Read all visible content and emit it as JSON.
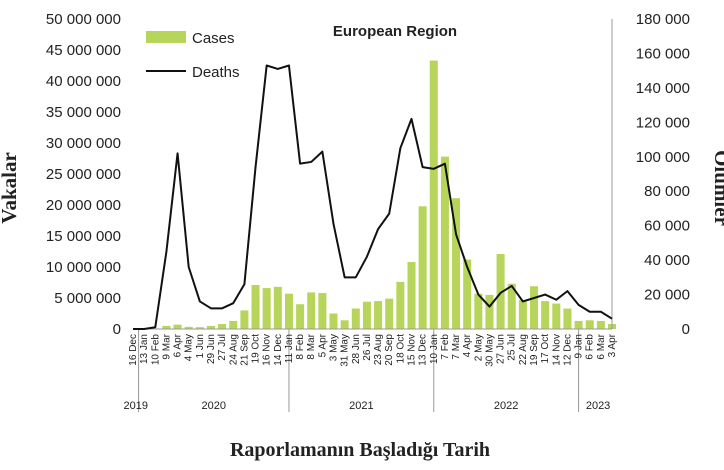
{
  "chart_data": {
    "type": "bar+line",
    "title": "European Region",
    "ylabel_left": "Vakalar",
    "ylabel_right": "Ölümler",
    "xlabel": "Raporlamanın Başladığı Tarih",
    "ylim_left": [
      0,
      50000000
    ],
    "ylim_right": [
      0,
      180000
    ],
    "yticks_left": [
      "0",
      "5 000 000",
      "10 000 000",
      "15 000 000",
      "20 000 000",
      "25 000 000",
      "30 000 000",
      "35 000 000",
      "40 000 000",
      "45 000 000",
      "50 000 000"
    ],
    "yticks_right": [
      "0",
      "20 000",
      "40 000",
      "60 000",
      "80 000",
      "100 000",
      "120 000",
      "140 000",
      "160 000",
      "180 000"
    ],
    "legend": {
      "position": "top-left",
      "bar_label": "Cases",
      "line_label": "Deaths"
    },
    "colors": {
      "bar": "#b7d55a",
      "line": "#111111"
    },
    "x_tick_labels": [
      "16 Dec",
      "13 Jan",
      "10 Feb",
      "9 Mar",
      "6 Apr",
      "4 May",
      "1 Jun",
      "29 Jun",
      "27 Jul",
      "24 Aug",
      "21 Sep",
      "19 Oct",
      "16 Nov",
      "14 Dec",
      "11 Jan",
      "8 Feb",
      "8 Mar",
      "5 Apr",
      "3 May",
      "31 May",
      "28 Jun",
      "26 Jul",
      "23 Aug",
      "20 Sep",
      "18 Oct",
      "15 Nov",
      "13 Dec",
      "10 Jan",
      "7 Feb",
      "7 Mar",
      "4 Apr",
      "2 May",
      "30 May",
      "27 Jun",
      "25 Jul",
      "22 Aug",
      "19 Sep",
      "17 Oct",
      "14 Nov",
      "12 Dec",
      "9 Jan",
      "6 Feb",
      "6 Mar",
      "3 Apr"
    ],
    "years": [
      {
        "label": "2019",
        "start": 0,
        "end": 0.5
      },
      {
        "label": "2020",
        "start": 0.5,
        "end": 14
      },
      {
        "label": "2021",
        "start": 14,
        "end": 27
      },
      {
        "label": "2022",
        "start": 27,
        "end": 40
      },
      {
        "label": "2023",
        "start": 40,
        "end": 43.5
      }
    ],
    "year_boundaries": [
      0.5,
      14,
      27,
      40
    ],
    "cases": [
      {
        "x": 1,
        "y": 50000
      },
      {
        "x": 2,
        "y": 100000
      },
      {
        "x": 3,
        "y": 500000
      },
      {
        "x": 4,
        "y": 700000
      },
      {
        "x": 5,
        "y": 350000
      },
      {
        "x": 6,
        "y": 300000
      },
      {
        "x": 7,
        "y": 500000
      },
      {
        "x": 8,
        "y": 800000
      },
      {
        "x": 9,
        "y": 1300000
      },
      {
        "x": 10,
        "y": 3000000
      },
      {
        "x": 11,
        "y": 7100000
      },
      {
        "x": 12,
        "y": 6600000
      },
      {
        "x": 13,
        "y": 6800000
      },
      {
        "x": 14,
        "y": 5700000
      },
      {
        "x": 15,
        "y": 4000000
      },
      {
        "x": 16,
        "y": 5900000
      },
      {
        "x": 17,
        "y": 5800000
      },
      {
        "x": 18,
        "y": 2500000
      },
      {
        "x": 19,
        "y": 1400000
      },
      {
        "x": 20,
        "y": 3300000
      },
      {
        "x": 21,
        "y": 4400000
      },
      {
        "x": 22,
        "y": 4500000
      },
      {
        "x": 23,
        "y": 4900000
      },
      {
        "x": 24,
        "y": 7600000
      },
      {
        "x": 25,
        "y": 10800000
      },
      {
        "x": 26,
        "y": 19800000
      },
      {
        "x": 27,
        "y": 43300000
      },
      {
        "x": 28,
        "y": 27800000
      },
      {
        "x": 29,
        "y": 21100000
      },
      {
        "x": 30,
        "y": 11200000
      },
      {
        "x": 31,
        "y": 5700000
      },
      {
        "x": 32,
        "y": 5500000
      },
      {
        "x": 33,
        "y": 12100000
      },
      {
        "x": 34,
        "y": 7300000
      },
      {
        "x": 35,
        "y": 4700000
      },
      {
        "x": 36,
        "y": 6900000
      },
      {
        "x": 37,
        "y": 4500000
      },
      {
        "x": 38,
        "y": 4100000
      },
      {
        "x": 39,
        "y": 3300000
      },
      {
        "x": 40,
        "y": 1300000
      },
      {
        "x": 41,
        "y": 1400000
      },
      {
        "x": 42,
        "y": 1300000
      },
      {
        "x": 43,
        "y": 800000
      }
    ],
    "deaths": [
      {
        "x": 0,
        "y": 0
      },
      {
        "x": 1,
        "y": 0
      },
      {
        "x": 2,
        "y": 1000
      },
      {
        "x": 3,
        "y": 45000
      },
      {
        "x": 4,
        "y": 102000
      },
      {
        "x": 5,
        "y": 36000
      },
      {
        "x": 6,
        "y": 16000
      },
      {
        "x": 7,
        "y": 12000
      },
      {
        "x": 8,
        "y": 12000
      },
      {
        "x": 9,
        "y": 15000
      },
      {
        "x": 10,
        "y": 26000
      },
      {
        "x": 11,
        "y": 94000
      },
      {
        "x": 12,
        "y": 153000
      },
      {
        "x": 13,
        "y": 151000
      },
      {
        "x": 14,
        "y": 153000
      },
      {
        "x": 15,
        "y": 96000
      },
      {
        "x": 16,
        "y": 97000
      },
      {
        "x": 17,
        "y": 103000
      },
      {
        "x": 18,
        "y": 61000
      },
      {
        "x": 19,
        "y": 30000
      },
      {
        "x": 20,
        "y": 30000
      },
      {
        "x": 21,
        "y": 42000
      },
      {
        "x": 22,
        "y": 58000
      },
      {
        "x": 23,
        "y": 67000
      },
      {
        "x": 24,
        "y": 105000
      },
      {
        "x": 25,
        "y": 122000
      },
      {
        "x": 26,
        "y": 94000
      },
      {
        "x": 27,
        "y": 93000
      },
      {
        "x": 28,
        "y": 96000
      },
      {
        "x": 29,
        "y": 55000
      },
      {
        "x": 30,
        "y": 36000
      },
      {
        "x": 31,
        "y": 20000
      },
      {
        "x": 32,
        "y": 13000
      },
      {
        "x": 33,
        "y": 21000
      },
      {
        "x": 34,
        "y": 25000
      },
      {
        "x": 35,
        "y": 16000
      },
      {
        "x": 36,
        "y": 18000
      },
      {
        "x": 37,
        "y": 20000
      },
      {
        "x": 38,
        "y": 17000
      },
      {
        "x": 39,
        "y": 22000
      },
      {
        "x": 40,
        "y": 14000
      },
      {
        "x": 41,
        "y": 10000
      },
      {
        "x": 42,
        "y": 10000
      },
      {
        "x": 43,
        "y": 6000
      }
    ]
  }
}
